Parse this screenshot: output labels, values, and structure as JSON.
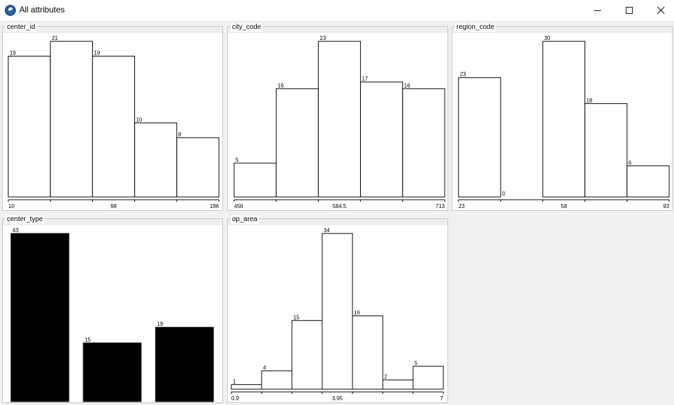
{
  "window": {
    "title": "All attributes",
    "icon": "app-globe-icon",
    "controls": [
      "minimize-icon",
      "maximize-icon",
      "close-icon"
    ]
  },
  "chart_data": [
    {
      "title": "center_id",
      "type": "bar",
      "fill": "#ffffff",
      "values": [
        19,
        21,
        19,
        10,
        8
      ],
      "ymax": 21,
      "axis_labels": [
        "10",
        "98",
        "186"
      ]
    },
    {
      "title": "city_code",
      "type": "bar",
      "fill": "#ffffff",
      "values": [
        5,
        16,
        23,
        17,
        16
      ],
      "ymax": 23,
      "axis_labels": [
        "456",
        "584.5",
        "713"
      ]
    },
    {
      "title": "region_code",
      "type": "bar",
      "fill": "#ffffff",
      "values": [
        23,
        0,
        30,
        18,
        6
      ],
      "ymax": 30,
      "axis_labels": [
        "23",
        "58",
        "93"
      ]
    },
    {
      "title": "center_type",
      "type": "bar",
      "fill": "#000000",
      "values": [
        43,
        15,
        19
      ],
      "ymax": 43,
      "axis_labels": []
    },
    {
      "title": "op_area",
      "type": "bar",
      "fill": "#ffffff",
      "values": [
        1,
        4,
        15,
        34,
        16,
        2,
        5
      ],
      "ymax": 34,
      "axis_labels": [
        "0.9",
        "3.95",
        "7"
      ]
    }
  ]
}
